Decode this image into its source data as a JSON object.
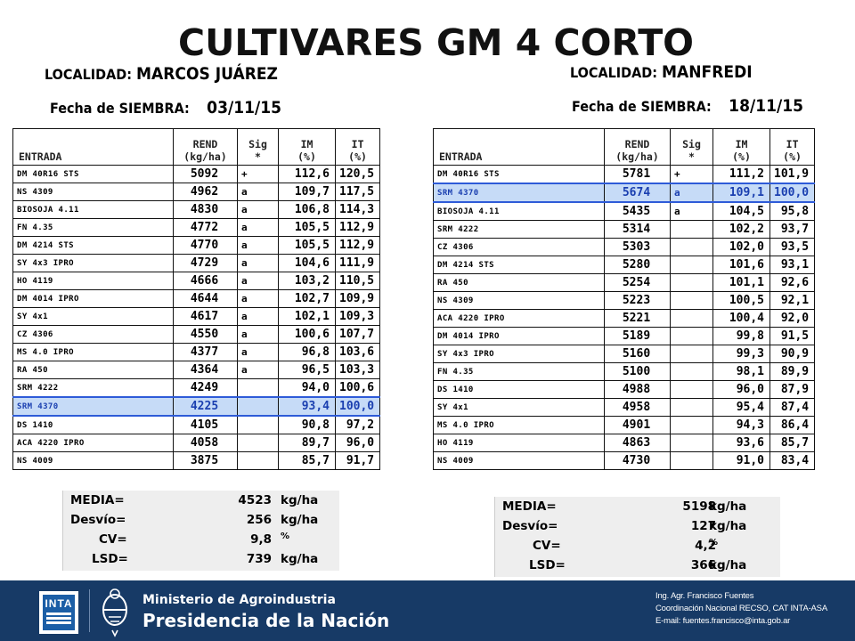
{
  "title": "CULTIVARES GM 4 CORTO",
  "left": {
    "localidad_label": "LOCALIDAD:",
    "localidad": "MARCOS JUÁREZ",
    "fecha_label": "Fecha de SIEMBRA:",
    "fecha": "03/11/15",
    "headers": {
      "entrada": "ENTRADA",
      "rend": "REND\n(kg/ha)",
      "sig": "Sig\n*",
      "im": "IM\n(%)",
      "it": "IT\n(%)"
    },
    "rows": [
      {
        "name": "DM 40R16 STS",
        "rend": "5092",
        "sig": "+",
        "im": "112,6",
        "it": "120,5"
      },
      {
        "name": "NS 4309",
        "rend": "4962",
        "sig": "a",
        "im": "109,7",
        "it": "117,5"
      },
      {
        "name": "BIOSOJA 4.11",
        "rend": "4830",
        "sig": "a",
        "im": "106,8",
        "it": "114,3"
      },
      {
        "name": "FN 4.35",
        "rend": "4772",
        "sig": "a",
        "im": "105,5",
        "it": "112,9"
      },
      {
        "name": "DM 4214 STS",
        "rend": "4770",
        "sig": "a",
        "im": "105,5",
        "it": "112,9"
      },
      {
        "name": "SY 4x3 IPRO",
        "rend": "4729",
        "sig": "a",
        "im": "104,6",
        "it": "111,9"
      },
      {
        "name": "HO 4119",
        "rend": "4666",
        "sig": "a",
        "im": "103,2",
        "it": "110,5"
      },
      {
        "name": "DM 4014 IPRO",
        "rend": "4644",
        "sig": "a",
        "im": "102,7",
        "it": "109,9"
      },
      {
        "name": "SY 4x1",
        "rend": "4617",
        "sig": "a",
        "im": "102,1",
        "it": "109,3"
      },
      {
        "name": "CZ 4306",
        "rend": "4550",
        "sig": "a",
        "im": "100,6",
        "it": "107,7"
      },
      {
        "name": "MS 4.0 IPRO",
        "rend": "4377",
        "sig": "a",
        "im": "96,8",
        "it": "103,6"
      },
      {
        "name": "RA 450",
        "rend": "4364",
        "sig": "a",
        "im": "96,5",
        "it": "103,3"
      },
      {
        "name": "SRM 4222",
        "rend": "4249",
        "sig": "",
        "im": "94,0",
        "it": "100,6"
      },
      {
        "name": "SRM 4370",
        "rend": "4225",
        "sig": "",
        "im": "93,4",
        "it": "100,0",
        "highlight": true
      },
      {
        "name": "DS 1410",
        "rend": "4105",
        "sig": "",
        "im": "90,8",
        "it": "97,2"
      },
      {
        "name": "ACA 4220 IPRO",
        "rend": "4058",
        "sig": "",
        "im": "89,7",
        "it": "96,0"
      },
      {
        "name": "NS 4009",
        "rend": "3875",
        "sig": "",
        "im": "85,7",
        "it": "91,7"
      }
    ],
    "stats": [
      {
        "label": "MEDIA=",
        "value": "4523",
        "unit": "kg/ha"
      },
      {
        "label": "Desvío=",
        "value": "256",
        "unit": "kg/ha"
      },
      {
        "label": "CV=",
        "value": "9,8",
        "unit": "%"
      },
      {
        "label": "LSD=",
        "value": "739",
        "unit": "kg/ha"
      }
    ]
  },
  "right": {
    "localidad_label": "LOCALIDAD:",
    "localidad": "MANFREDI",
    "fecha_label": "Fecha de SIEMBRA:",
    "fecha": "18/11/15",
    "headers": {
      "entrada": "ENTRADA",
      "rend": "REND\n(kg/ha)",
      "sig": "Sig\n*",
      "im": "IM\n(%)",
      "it": "IT\n(%)"
    },
    "rows": [
      {
        "name": "DM 40R16 STS",
        "rend": "5781",
        "sig": "+",
        "im": "111,2",
        "it": "101,9"
      },
      {
        "name": "SRM 4370",
        "rend": "5674",
        "sig": "a",
        "im": "109,1",
        "it": "100,0",
        "highlight": true
      },
      {
        "name": "BIOSOJA 4.11",
        "rend": "5435",
        "sig": "a",
        "im": "104,5",
        "it": "95,8"
      },
      {
        "name": "SRM 4222",
        "rend": "5314",
        "sig": "",
        "im": "102,2",
        "it": "93,7"
      },
      {
        "name": "CZ 4306",
        "rend": "5303",
        "sig": "",
        "im": "102,0",
        "it": "93,5"
      },
      {
        "name": "DM 4214 STS",
        "rend": "5280",
        "sig": "",
        "im": "101,6",
        "it": "93,1"
      },
      {
        "name": "RA 450",
        "rend": "5254",
        "sig": "",
        "im": "101,1",
        "it": "92,6"
      },
      {
        "name": "NS 4309",
        "rend": "5223",
        "sig": "",
        "im": "100,5",
        "it": "92,1"
      },
      {
        "name": "ACA 4220 IPRO",
        "rend": "5221",
        "sig": "",
        "im": "100,4",
        "it": "92,0"
      },
      {
        "name": "DM 4014 IPRO",
        "rend": "5189",
        "sig": "",
        "im": "99,8",
        "it": "91,5"
      },
      {
        "name": "SY 4x3 IPRO",
        "rend": "5160",
        "sig": "",
        "im": "99,3",
        "it": "90,9"
      },
      {
        "name": "FN 4.35",
        "rend": "5100",
        "sig": "",
        "im": "98,1",
        "it": "89,9"
      },
      {
        "name": "DS 1410",
        "rend": "4988",
        "sig": "",
        "im": "96,0",
        "it": "87,9"
      },
      {
        "name": "SY 4x1",
        "rend": "4958",
        "sig": "",
        "im": "95,4",
        "it": "87,4"
      },
      {
        "name": "MS 4.0 IPRO",
        "rend": "4901",
        "sig": "",
        "im": "94,3",
        "it": "86,4"
      },
      {
        "name": "HO 4119",
        "rend": "4863",
        "sig": "",
        "im": "93,6",
        "it": "85,7"
      },
      {
        "name": "NS 4009",
        "rend": "4730",
        "sig": "",
        "im": "91,0",
        "it": "83,4"
      }
    ],
    "stats": [
      {
        "label": "MEDIA=",
        "value": "5198",
        "unit": "kg/ha"
      },
      {
        "label": "Desvío=",
        "value": "127",
        "unit": "kg/ha"
      },
      {
        "label": "CV=",
        "value": "4,2",
        "unit": "%"
      },
      {
        "label": "LSD=",
        "value": "366",
        "unit": "kg/ha"
      }
    ]
  },
  "footer": {
    "inta_logo_text": "INTA",
    "ministerio": "Ministerio de Agroindustria",
    "presidencia": "Presidencia de la Nación",
    "credits": [
      "Ing. Agr. Francisco Fuentes",
      "Coordinación Nacional RECSO, CAT INTA-ASA",
      "E-mail: fuentes.francisco@inta.gob.ar"
    ]
  },
  "colors": {
    "highlight_row": "#c6dbf7",
    "highlight_text": "#1a3fb0",
    "footer_bg": "#173a66",
    "stats_bg": "#eeeeee"
  }
}
